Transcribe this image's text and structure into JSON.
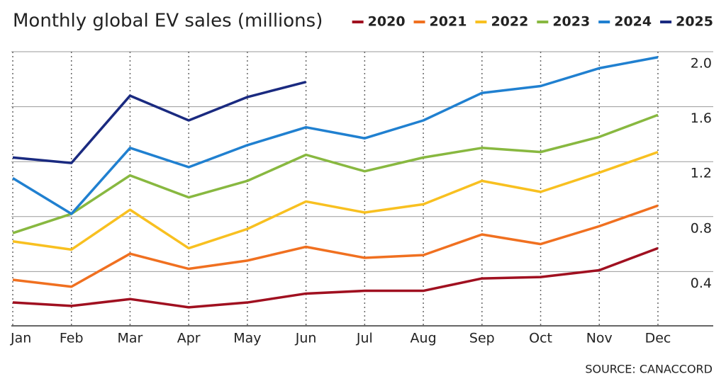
{
  "chart_data": {
    "type": "line",
    "title": "Monthly global EV sales (millions)",
    "categories": [
      "Jan",
      "Feb",
      "Mar",
      "Apr",
      "May",
      "Jun",
      "Jul",
      "Aug",
      "Sep",
      "Oct",
      "Nov",
      "Dec"
    ],
    "series": [
      {
        "name": "2020",
        "color": "#a01020",
        "values": [
          0.175,
          0.15,
          0.2,
          0.14,
          0.175,
          0.24,
          0.26,
          0.26,
          0.35,
          0.36,
          0.41,
          0.57
        ]
      },
      {
        "name": "2021",
        "color": "#f07020",
        "values": [
          0.34,
          0.29,
          0.53,
          0.42,
          0.48,
          0.58,
          0.5,
          0.52,
          0.67,
          0.6,
          0.73,
          0.88
        ]
      },
      {
        "name": "2022",
        "color": "#f8c020",
        "values": [
          0.62,
          0.56,
          0.85,
          0.57,
          0.71,
          0.91,
          0.83,
          0.89,
          1.06,
          0.98,
          1.12,
          1.27
        ]
      },
      {
        "name": "2023",
        "color": "#88b840",
        "values": [
          0.68,
          0.82,
          1.1,
          0.94,
          1.06,
          1.25,
          1.13,
          1.23,
          1.3,
          1.27,
          1.38,
          1.54
        ]
      },
      {
        "name": "2024",
        "color": "#2080d0",
        "values": [
          1.08,
          0.82,
          1.3,
          1.16,
          1.32,
          1.45,
          1.37,
          1.5,
          1.7,
          1.75,
          1.88,
          1.96
        ]
      },
      {
        "name": "2025",
        "color": "#1a2a80",
        "values": [
          1.23,
          1.19,
          1.68,
          1.5,
          1.67,
          1.78,
          null,
          null,
          null,
          null,
          null,
          null
        ]
      }
    ],
    "ylim": [
      0,
      2.0
    ],
    "yticks": [
      0.4,
      0.8,
      1.2,
      1.6,
      {
        "value": 2,
        "label": "2.0"
      }
    ],
    "grid": true,
    "source": "SOURCE: CANACCORD"
  }
}
